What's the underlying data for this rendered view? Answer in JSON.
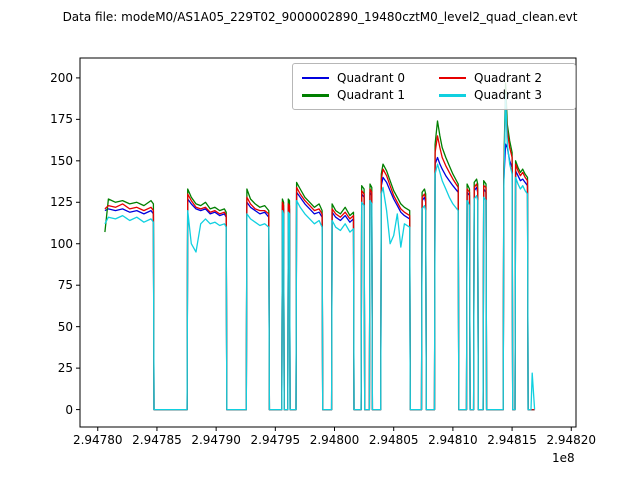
{
  "page": {
    "title": "Data file: modeM0/AS1A05_229T02_9000002890_19480cztM0_level2_quad_clean.evt"
  },
  "chart_data": {
    "type": "line",
    "title": "Data file: modeM0/AS1A05_229T02_9000002890_19480cztM0_level2_quad_clean.evt",
    "xlabel": "",
    "ylabel": "",
    "x_axis_offset": "1e8",
    "legend_position": "upper right, 2 columns",
    "grid": false,
    "xlim": [
      294778500,
      294820400
    ],
    "ylim": [
      -10.5,
      212
    ],
    "x_ticks": [
      294780000,
      294785000,
      294790000,
      294795000,
      294800000,
      294805000,
      294810000,
      294815000,
      294820000
    ],
    "x_tick_labels": [
      "2.94780",
      "2.94785",
      "2.94790",
      "2.94795",
      "2.94800",
      "2.94805",
      "2.94810",
      "2.94815",
      "2.94820"
    ],
    "y_ticks": [
      0,
      25,
      50,
      75,
      100,
      125,
      150,
      175,
      200
    ],
    "y_tick_labels": [
      "0",
      "25",
      "50",
      "75",
      "100",
      "125",
      "150",
      "175",
      "200"
    ],
    "x": [
      294780600,
      294780900,
      294781500,
      294782100,
      294782700,
      294783300,
      294783900,
      294784500,
      294784700,
      294784750,
      294787550,
      294787600,
      294787900,
      294788300,
      294788700,
      294789100,
      294789500,
      294789900,
      294790300,
      294790700,
      294790850,
      294790900,
      294792550,
      294792600,
      294792900,
      294793300,
      294793700,
      294794100,
      294794450,
      294794500,
      294795550,
      294795600,
      294795700,
      294795750,
      294796050,
      294796100,
      294796200,
      294796250,
      294796750,
      294796800,
      294797100,
      294797500,
      294797900,
      294798300,
      294798700,
      294798950,
      294799000,
      294799750,
      294799800,
      294800100,
      294800500,
      294800900,
      294801300,
      294801600,
      294801650,
      294802250,
      294802300,
      294802500,
      294802550,
      294802950,
      294803000,
      294803150,
      294803200,
      294803900,
      294803950,
      294804100,
      294804400,
      294804700,
      294805000,
      294805300,
      294805600,
      294805900,
      294806350,
      294806400,
      294807350,
      294807400,
      294807600,
      294807700,
      294807750,
      294808450,
      294808500,
      294808700,
      294808900,
      294809100,
      294809400,
      294809700,
      294810000,
      294810450,
      294810500,
      294811150,
      294811200,
      294811400,
      294811450,
      294811750,
      294811800,
      294812000,
      294812100,
      294812150,
      294812550,
      294812600,
      294812800,
      294812850,
      294814250,
      294814300,
      294814450,
      294814600,
      294814800,
      294815000,
      294815050,
      294815250,
      294815300,
      294815500,
      294815700,
      294815900,
      294816100,
      294816300,
      294816350,
      294816600,
      294816700,
      294816900
    ],
    "series": [
      {
        "name": "Quadrant 0",
        "color": "#0000dd",
        "values": [
          120,
          121,
          120,
          121,
          119,
          120,
          118,
          120,
          118,
          0,
          0,
          127,
          124,
          121,
          120,
          121,
          118,
          119,
          117,
          118,
          116,
          0,
          0,
          125,
          122,
          120,
          118,
          119,
          116,
          0,
          0,
          123,
          121,
          0,
          0,
          122,
          121,
          0,
          0,
          131,
          128,
          124,
          121,
          118,
          119,
          116,
          0,
          0,
          119,
          116,
          114,
          117,
          113,
          115,
          0,
          0,
          130,
          128,
          0,
          0,
          131,
          129,
          0,
          0,
          135,
          140,
          137,
          132,
          127,
          123,
          119,
          117,
          115,
          0,
          0,
          126,
          128,
          125,
          0,
          0,
          148,
          152,
          148,
          145,
          141,
          138,
          135,
          131,
          0,
          0,
          131,
          129,
          0,
          0,
          132,
          134,
          131,
          0,
          0,
          133,
          131,
          0,
          0,
          138,
          160,
          158,
          150,
          146,
          0,
          0,
          144,
          141,
          138,
          139,
          137,
          135,
          0,
          0,
          0,
          0
        ]
      },
      {
        "name": "Quadrant 1",
        "color": "#007f00",
        "values": [
          107,
          127,
          125,
          126,
          124,
          125,
          123,
          126,
          124,
          0,
          0,
          133,
          128,
          124,
          123,
          125,
          121,
          122,
          120,
          121,
          119,
          0,
          0,
          133,
          127,
          124,
          122,
          123,
          120,
          0,
          0,
          127,
          125,
          0,
          0,
          127,
          126,
          0,
          0,
          137,
          133,
          128,
          125,
          122,
          124,
          120,
          0,
          0,
          124,
          120,
          118,
          122,
          117,
          119,
          0,
          0,
          135,
          133,
          0,
          0,
          136,
          134,
          0,
          0,
          142,
          148,
          144,
          138,
          132,
          128,
          124,
          122,
          120,
          0,
          0,
          131,
          133,
          130,
          0,
          0,
          160,
          174,
          165,
          158,
          152,
          147,
          142,
          136,
          0,
          0,
          136,
          133,
          0,
          0,
          137,
          139,
          136,
          0,
          0,
          138,
          136,
          0,
          0,
          145,
          197,
          172,
          162,
          155,
          0,
          0,
          150,
          146,
          143,
          145,
          142,
          140,
          0,
          0,
          0,
          0
        ]
      },
      {
        "name": "Quadrant 2",
        "color": "#e60000",
        "values": [
          121,
          123,
          122,
          124,
          121,
          122,
          120,
          122,
          120,
          0,
          0,
          130,
          126,
          122,
          121,
          122,
          119,
          120,
          118,
          119,
          117,
          0,
          0,
          128,
          124,
          121,
          120,
          120,
          118,
          0,
          0,
          125,
          123,
          0,
          0,
          124,
          123,
          0,
          0,
          134,
          130,
          126,
          123,
          120,
          121,
          118,
          0,
          0,
          121,
          118,
          116,
          119,
          115,
          117,
          0,
          0,
          132,
          130,
          0,
          0,
          133,
          131,
          0,
          0,
          139,
          145,
          141,
          135,
          129,
          125,
          121,
          119,
          117,
          0,
          0,
          128,
          130,
          127,
          0,
          0,
          155,
          165,
          158,
          152,
          147,
          143,
          139,
          134,
          0,
          0,
          133,
          131,
          0,
          0,
          134,
          136,
          133,
          0,
          0,
          135,
          134,
          0,
          0,
          142,
          185,
          168,
          158,
          152,
          0,
          0,
          148,
          144,
          141,
          143,
          140,
          138,
          0,
          0,
          0,
          0
        ]
      },
      {
        "name": "Quadrant 3",
        "color": "#10d0e0",
        "values": [
          112,
          116,
          115,
          117,
          114,
          116,
          113,
          115,
          113,
          0,
          0,
          120,
          100,
          95,
          112,
          115,
          112,
          113,
          111,
          112,
          110,
          0,
          0,
          118,
          115,
          113,
          111,
          112,
          110,
          0,
          0,
          120,
          118,
          0,
          0,
          119,
          118,
          0,
          0,
          126,
          122,
          118,
          115,
          112,
          114,
          110,
          0,
          0,
          114,
          110,
          108,
          112,
          107,
          109,
          0,
          0,
          125,
          123,
          0,
          0,
          126,
          124,
          0,
          0,
          130,
          134,
          120,
          100,
          105,
          118,
          98,
          112,
          110,
          0,
          0,
          121,
          123,
          120,
          0,
          0,
          142,
          148,
          143,
          138,
          133,
          128,
          124,
          120,
          0,
          0,
          126,
          123,
          0,
          0,
          127,
          129,
          126,
          0,
          0,
          128,
          126,
          0,
          0,
          133,
          190,
          160,
          148,
          142,
          0,
          0,
          140,
          136,
          133,
          135,
          132,
          130,
          0,
          0,
          22,
          0
        ]
      }
    ]
  }
}
